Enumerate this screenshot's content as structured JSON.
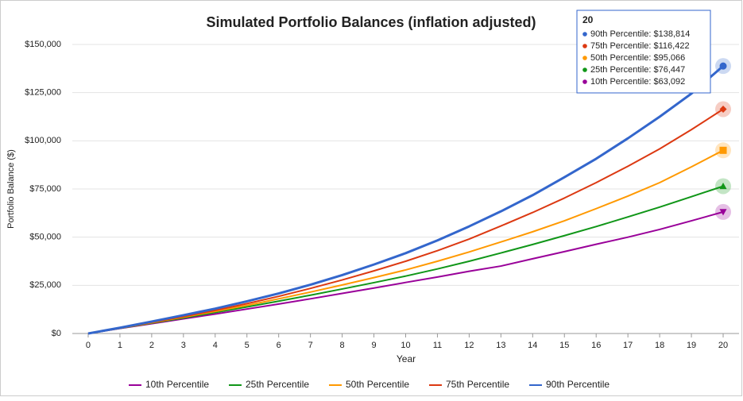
{
  "chart_data": {
    "type": "line",
    "title": "Simulated Portfolio Balances (inflation adjusted)",
    "x_label": "Year",
    "y_label": "Portfolio Balance ($)",
    "x": [
      0,
      1,
      2,
      3,
      4,
      5,
      6,
      7,
      8,
      9,
      10,
      11,
      12,
      13,
      14,
      15,
      16,
      17,
      18,
      19,
      20
    ],
    "xlim": [
      -0.5,
      20.5
    ],
    "xticks": [
      0,
      1,
      2,
      3,
      4,
      5,
      6,
      7,
      8,
      9,
      10,
      11,
      12,
      13,
      14,
      15,
      16,
      17,
      18,
      19,
      20
    ],
    "ylim": [
      0,
      150000
    ],
    "yticks": [
      {
        "value": 0,
        "label": "$0"
      },
      {
        "value": 25000,
        "label": "$25,000"
      },
      {
        "value": 50000,
        "label": "$50,000"
      },
      {
        "value": 75000,
        "label": "$75,000"
      },
      {
        "value": 100000,
        "label": "$100,000"
      },
      {
        "value": 125000,
        "label": "$125,000"
      },
      {
        "value": 150000,
        "label": "$150,000"
      }
    ],
    "grid": true,
    "legend": "bottom",
    "series": [
      {
        "name": "10th Percentile",
        "color": "#990099",
        "marker": "triangle-down",
        "values": [
          0,
          2600,
          5100,
          7600,
          10100,
          12700,
          15300,
          18000,
          20800,
          23600,
          26500,
          29300,
          32300,
          35000,
          38800,
          42500,
          46300,
          50000,
          54000,
          58500,
          63092
        ]
      },
      {
        "name": "25th Percentile",
        "color": "#109618",
        "marker": "triangle",
        "values": [
          0,
          2700,
          5400,
          8100,
          10900,
          13800,
          16800,
          19900,
          23100,
          26400,
          29800,
          33500,
          37500,
          41800,
          46200,
          50800,
          55500,
          60500,
          65600,
          71000,
          76447
        ]
      },
      {
        "name": "50th Percentile",
        "color": "#ff9900",
        "marker": "square",
        "values": [
          0,
          2800,
          5600,
          8500,
          11500,
          14600,
          18000,
          21500,
          25200,
          29000,
          33000,
          37500,
          42300,
          47500,
          52800,
          58500,
          64800,
          71300,
          78300,
          86500,
          95066
        ]
      },
      {
        "name": "75th Percentile",
        "color": "#dc3912",
        "marker": "diamond",
        "values": [
          0,
          2900,
          5800,
          8800,
          12000,
          15500,
          19300,
          23400,
          27800,
          32500,
          37500,
          43000,
          49000,
          55800,
          62800,
          70300,
          78300,
          86800,
          95800,
          105800,
          116422
        ]
      },
      {
        "name": "90th Percentile",
        "color": "#3366cc",
        "marker": "circle",
        "values": [
          0,
          3000,
          6200,
          9500,
          12900,
          16700,
          20800,
          25300,
          30300,
          35800,
          41700,
          48300,
          55600,
          63400,
          71800,
          81100,
          90700,
          101300,
          112500,
          124500,
          138814
        ]
      }
    ],
    "tooltip": {
      "title": "20",
      "items": [
        "90th Percentile: $138,814",
        "75th Percentile: $116,422",
        "50th Percentile: $95,066",
        "25th Percentile: $76,447",
        "10th Percentile: $63,092"
      ],
      "colors": [
        "#3366cc",
        "#dc3912",
        "#ff9900",
        "#109618",
        "#990099"
      ]
    }
  }
}
